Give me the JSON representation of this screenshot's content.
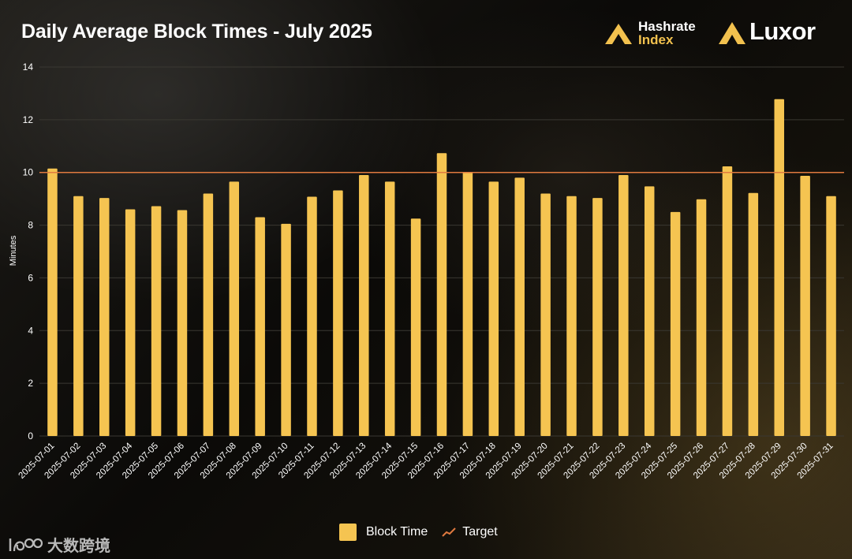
{
  "colors": {
    "bar": "#f5c451",
    "target": "#e07a3f",
    "grid": "#3a3832",
    "brand_gold": "#f2c14e"
  },
  "header": {
    "title": "Daily Average Block Times - July 2025",
    "logo_hashrate_line1": "Hashrate",
    "logo_hashrate_line2": "Index",
    "logo_luxor": "Luxor"
  },
  "watermark": {
    "text": "大数跨境",
    "icon": "100-logo-icon"
  },
  "chart_data": {
    "type": "bar",
    "title": "Daily Average Block Times - July 2025",
    "xlabel": "",
    "ylabel": "Minutes",
    "ylim": [
      0,
      14
    ],
    "yticks": [
      0,
      2,
      4,
      6,
      8,
      10,
      12,
      14
    ],
    "grid": true,
    "legend_position": "bottom-center",
    "categories": [
      "2025-07-01",
      "2025-07-02",
      "2025-07-03",
      "2025-07-04",
      "2025-07-05",
      "2025-07-06",
      "2025-07-07",
      "2025-07-08",
      "2025-07-09",
      "2025-07-10",
      "2025-07-11",
      "2025-07-12",
      "2025-07-13",
      "2025-07-14",
      "2025-07-15",
      "2025-07-16",
      "2025-07-17",
      "2025-07-18",
      "2025-07-19",
      "2025-07-20",
      "2025-07-21",
      "2025-07-22",
      "2025-07-23",
      "2025-07-24",
      "2025-07-25",
      "2025-07-26",
      "2025-07-27",
      "2025-07-28",
      "2025-07-29",
      "2025-07-30",
      "2025-07-31"
    ],
    "series": [
      {
        "name": "Block Time",
        "type": "bar",
        "values": [
          10.15,
          9.1,
          9.03,
          8.6,
          8.72,
          8.57,
          9.2,
          9.65,
          8.3,
          8.05,
          9.08,
          9.32,
          9.9,
          9.65,
          8.25,
          10.73,
          10.0,
          9.65,
          9.8,
          9.2,
          9.1,
          9.03,
          9.9,
          9.47,
          8.5,
          8.98,
          10.23,
          9.22,
          12.78,
          9.87,
          9.1
        ]
      },
      {
        "name": "Target",
        "type": "line",
        "value": 10
      }
    ]
  }
}
